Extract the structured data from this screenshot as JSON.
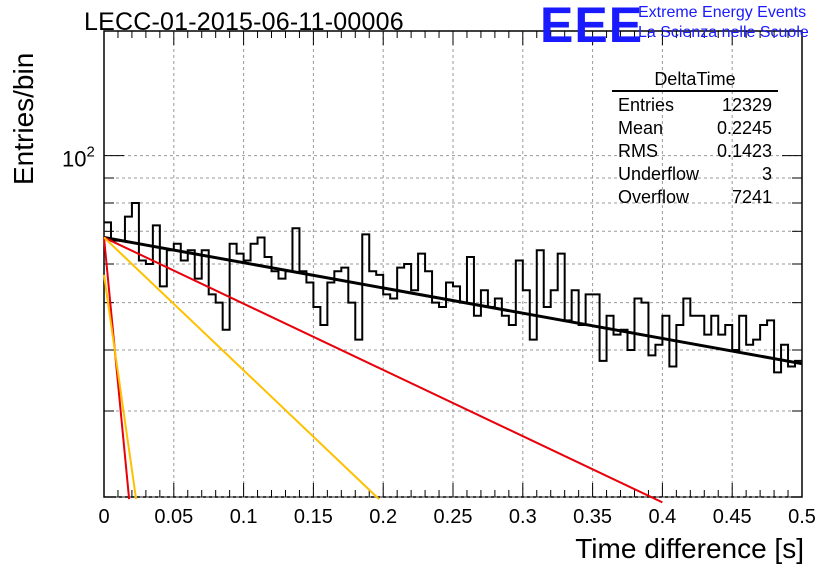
{
  "header": {
    "title": "LECC-01-2015-06-11-00006",
    "logo_text": "EEE",
    "logo_line1": "Extreme Energy Events",
    "logo_line2": "La Scienza nelle Scuole"
  },
  "stats": {
    "name": "DeltaTime",
    "rows": [
      {
        "label": "Entries",
        "value": "12329"
      },
      {
        "label": "Mean",
        "value": "0.2245"
      },
      {
        "label": "RMS",
        "value": "0.1423"
      },
      {
        "label": "Underflow",
        "value": "3"
      },
      {
        "label": "Overflow",
        "value": "7241"
      }
    ]
  },
  "colors": {
    "histogram": "#000000",
    "fit": "#000000",
    "red": "#e8000b",
    "yellow": "#ffc000",
    "logo": "#1a1aff",
    "grid": "#9a9a9a"
  },
  "chart_data": {
    "type": "line",
    "xlabel": "Time difference [s]",
    "ylabel": "Entries/bin",
    "xlim": [
      0,
      0.5
    ],
    "ylim": [
      20,
      180
    ],
    "yscale": "log",
    "grid": true,
    "xticks": [
      "0",
      "0.05",
      "0.1",
      "0.15",
      "0.2",
      "0.25",
      "0.3",
      "0.35",
      "0.4",
      "0.45",
      "0.5"
    ],
    "yticks": [
      {
        "value": 100,
        "label": "10",
        "exponent": "2"
      }
    ],
    "bin_width": 0.005,
    "histogram": [
      73,
      67,
      67,
      75,
      80,
      61,
      60,
      72,
      54,
      64,
      66,
      61,
      64,
      56,
      64,
      52,
      50,
      44,
      66,
      63,
      61,
      66,
      68,
      62,
      58,
      56,
      58,
      71,
      58,
      55,
      49,
      45,
      55,
      58,
      59,
      50,
      42,
      69,
      58,
      57,
      52,
      51,
      59,
      60,
      53,
      63,
      58,
      50,
      49,
      55,
      54,
      50,
      62,
      47,
      53,
      49,
      51,
      47,
      45,
      61,
      53,
      42,
      64,
      49,
      53,
      63,
      46,
      53,
      45,
      52,
      52,
      38,
      47,
      43,
      44,
      40,
      51,
      50,
      39,
      41,
      47,
      37,
      45,
      51,
      47,
      47,
      43,
      47,
      43,
      45,
      40,
      47,
      41,
      42,
      45,
      46,
      36,
      41,
      37,
      38
    ],
    "series": [
      {
        "name": "",
        "color": "black",
        "points": [
          [
            0,
            68
          ],
          [
            0.5,
            37.5
          ]
        ]
      },
      {
        "name": "",
        "color": "red",
        "points": [
          [
            0,
            68
          ],
          [
            0.4,
            19.5
          ]
        ]
      },
      {
        "name": "",
        "color": "red",
        "points": [
          [
            0,
            68
          ],
          [
            0.018,
            19.8
          ]
        ]
      },
      {
        "name": "",
        "color": "yellow",
        "points": [
          [
            0,
            68
          ],
          [
            0.197,
            19.8
          ]
        ]
      },
      {
        "name": "",
        "color": "yellow",
        "points": [
          [
            0,
            57
          ],
          [
            0.023,
            19.8
          ]
        ]
      }
    ]
  }
}
